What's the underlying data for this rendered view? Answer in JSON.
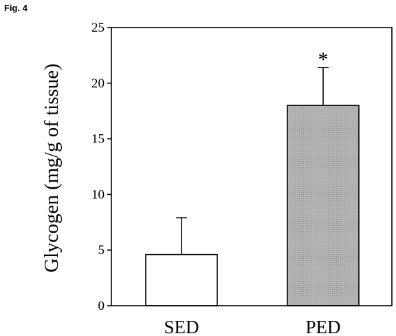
{
  "figure_label": "Fig. 4",
  "chart_data": {
    "type": "bar",
    "categories": [
      "SED",
      "PED"
    ],
    "values": [
      4.6,
      18.0
    ],
    "errors": [
      3.3,
      3.4
    ],
    "annotations": [
      "",
      "*"
    ],
    "ylabel": "Glycogen (mg/g of tissue)",
    "xlabel": "",
    "ylim": [
      0,
      25
    ],
    "yticks": [
      "0",
      "5",
      "10",
      "15",
      "20",
      "25"
    ],
    "bar_colors": [
      "#ffffff",
      "#b4b4b4"
    ],
    "grid": false,
    "legend": "none"
  }
}
